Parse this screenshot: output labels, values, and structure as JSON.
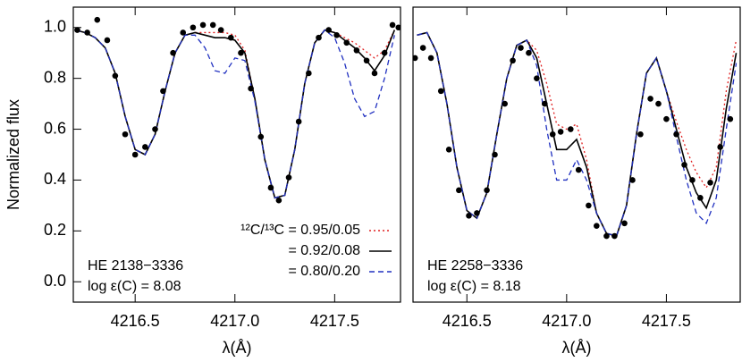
{
  "chart_data": [
    {
      "type": "line",
      "ylabel": "Normalized flux",
      "xlabel": "λ(Å)",
      "annotations": [
        "HE 2138−3336",
        "log ε(C) = 8.08"
      ],
      "xlim": [
        4216.19,
        4217.83
      ],
      "ylim": [
        -0.08,
        1.08
      ],
      "xticks": [
        4216.5,
        {
          "value": 4217.0,
          "label": "4217.0"
        },
        4217.5
      ],
      "yticks": [
        {
          "value": 0.0,
          "label": "0.0"
        },
        0.2,
        0.4,
        0.6,
        0.8,
        {
          "value": 1.0,
          "label": "1.0"
        }
      ],
      "legend": "lower-right",
      "x": [
        4216.2,
        4216.25,
        4216.3,
        4216.35,
        4216.4,
        4216.45,
        4216.5,
        4216.55,
        4216.6,
        4216.65,
        4216.7,
        4216.75,
        4216.8,
        4216.85,
        4216.9,
        4216.95,
        4217.0,
        4217.05,
        4217.1,
        4217.15,
        4217.2,
        4217.25,
        4217.3,
        4217.35,
        4217.4,
        4217.45,
        4217.5,
        4217.55,
        4217.6,
        4217.65,
        4217.7,
        4217.75,
        4217.8
      ],
      "series": [
        {
          "name": "¹²C/¹³C = 0.95/0.05",
          "color": "#e02020",
          "dash": "dotted",
          "values": [
            0.99,
            0.98,
            0.96,
            0.92,
            0.82,
            0.65,
            0.52,
            0.5,
            0.58,
            0.75,
            0.9,
            0.97,
            0.98,
            0.98,
            0.98,
            0.98,
            0.97,
            0.91,
            0.72,
            0.48,
            0.33,
            0.34,
            0.52,
            0.78,
            0.94,
            0.99,
            0.98,
            0.96,
            0.94,
            0.91,
            0.88,
            0.91,
            0.99
          ]
        },
        {
          "name": "= 0.92/0.08",
          "color": "#000000",
          "dash": "solid",
          "values": [
            0.99,
            0.98,
            0.96,
            0.92,
            0.82,
            0.65,
            0.52,
            0.5,
            0.58,
            0.75,
            0.9,
            0.97,
            0.98,
            0.97,
            0.96,
            0.96,
            0.95,
            0.9,
            0.72,
            0.48,
            0.33,
            0.34,
            0.52,
            0.78,
            0.94,
            0.99,
            0.98,
            0.95,
            0.92,
            0.88,
            0.83,
            0.89,
            0.99
          ]
        },
        {
          "name": "= 0.80/0.20",
          "color": "#2030c0",
          "dash": "dashed",
          "values": [
            0.99,
            0.98,
            0.96,
            0.92,
            0.82,
            0.65,
            0.52,
            0.5,
            0.58,
            0.75,
            0.9,
            0.97,
            0.97,
            0.92,
            0.83,
            0.82,
            0.88,
            0.87,
            0.71,
            0.48,
            0.33,
            0.34,
            0.52,
            0.78,
            0.94,
            0.99,
            0.96,
            0.86,
            0.72,
            0.65,
            0.67,
            0.8,
            0.97
          ]
        }
      ],
      "observed": {
        "color": "#000000",
        "x": [
          4216.21,
          4216.26,
          4216.31,
          4216.36,
          4216.4,
          4216.45,
          4216.5,
          4216.55,
          4216.6,
          4216.64,
          4216.69,
          4216.74,
          4216.79,
          4216.84,
          4216.89,
          4216.93,
          4216.98,
          4217.03,
          4217.08,
          4217.13,
          4217.18,
          4217.22,
          4217.27,
          4217.32,
          4217.37,
          4217.42,
          4217.47,
          4217.51,
          4217.56,
          4217.61,
          4217.66,
          4217.7,
          4217.75,
          4217.79,
          4217.82
        ],
        "values": [
          0.99,
          0.98,
          1.03,
          0.95,
          0.81,
          0.58,
          0.5,
          0.53,
          0.6,
          0.75,
          0.9,
          0.98,
          1.0,
          1.01,
          1.01,
          0.99,
          0.96,
          0.9,
          0.76,
          0.57,
          0.37,
          0.32,
          0.41,
          0.63,
          0.82,
          0.96,
          0.99,
          0.97,
          0.94,
          0.91,
          0.87,
          0.82,
          0.9,
          1.01,
          1.0
        ]
      }
    },
    {
      "type": "line",
      "xlabel": "λ(Å)",
      "annotations": [
        "HE 2258−3336",
        "log ε(C) = 8.18"
      ],
      "xlim": [
        4216.23,
        4217.87
      ],
      "ylim": [
        -0.08,
        1.08
      ],
      "xticks": [
        4216.5,
        {
          "value": 4217.0,
          "label": "4217.0"
        },
        4217.5
      ],
      "x": [
        4216.25,
        4216.3,
        4216.35,
        4216.4,
        4216.45,
        4216.5,
        4216.55,
        4216.6,
        4216.65,
        4216.7,
        4216.75,
        4216.8,
        4216.85,
        4216.9,
        4216.95,
        4217.0,
        4217.05,
        4217.1,
        4217.15,
        4217.2,
        4217.25,
        4217.3,
        4217.35,
        4217.4,
        4217.45,
        4217.5,
        4217.55,
        4217.6,
        4217.65,
        4217.7,
        4217.75,
        4217.8,
        4217.85
      ],
      "series": [
        {
          "color": "#e02020",
          "dash": "dotted",
          "values": [
            0.97,
            0.98,
            0.9,
            0.7,
            0.45,
            0.28,
            0.25,
            0.35,
            0.58,
            0.8,
            0.93,
            0.95,
            0.91,
            0.78,
            0.62,
            0.6,
            0.62,
            0.48,
            0.27,
            0.19,
            0.18,
            0.3,
            0.58,
            0.82,
            0.88,
            0.75,
            0.63,
            0.52,
            0.43,
            0.37,
            0.45,
            0.75,
            0.95
          ]
        },
        {
          "color": "#000000",
          "dash": "solid",
          "values": [
            0.97,
            0.98,
            0.9,
            0.7,
            0.45,
            0.28,
            0.25,
            0.35,
            0.58,
            0.8,
            0.93,
            0.95,
            0.88,
            0.7,
            0.52,
            0.52,
            0.56,
            0.45,
            0.27,
            0.19,
            0.18,
            0.3,
            0.58,
            0.82,
            0.88,
            0.75,
            0.6,
            0.45,
            0.35,
            0.29,
            0.4,
            0.68,
            0.9
          ]
        },
        {
          "color": "#2030c0",
          "dash": "dashed",
          "values": [
            0.97,
            0.98,
            0.9,
            0.7,
            0.45,
            0.28,
            0.25,
            0.35,
            0.58,
            0.8,
            0.93,
            0.95,
            0.85,
            0.6,
            0.4,
            0.4,
            0.48,
            0.4,
            0.27,
            0.19,
            0.18,
            0.3,
            0.58,
            0.82,
            0.88,
            0.75,
            0.57,
            0.4,
            0.27,
            0.23,
            0.33,
            0.6,
            0.86
          ]
        }
      ],
      "observed": {
        "color": "#000000",
        "x": [
          4216.24,
          4216.28,
          4216.32,
          4216.37,
          4216.41,
          4216.46,
          4216.51,
          4216.55,
          4216.6,
          4216.64,
          4216.69,
          4216.73,
          4216.77,
          4216.81,
          4216.85,
          4216.89,
          4216.93,
          4216.97,
          4217.02,
          4217.06,
          4217.11,
          4217.15,
          4217.2,
          4217.24,
          4217.29,
          4217.33,
          4217.37,
          4217.42,
          4217.46,
          4217.5,
          4217.55,
          4217.59,
          4217.63,
          4217.67,
          4217.72,
          4217.77,
          4217.82
        ],
        "values": [
          0.88,
          0.92,
          0.88,
          0.75,
          0.52,
          0.36,
          0.26,
          0.27,
          0.36,
          0.5,
          0.7,
          0.87,
          0.92,
          0.9,
          0.8,
          0.7,
          0.58,
          0.59,
          0.6,
          0.44,
          0.3,
          0.22,
          0.18,
          0.18,
          0.23,
          0.4,
          0.58,
          0.72,
          0.7,
          0.64,
          0.58,
          0.46,
          0.4,
          0.33,
          0.39,
          0.53,
          0.64
        ]
      }
    }
  ]
}
